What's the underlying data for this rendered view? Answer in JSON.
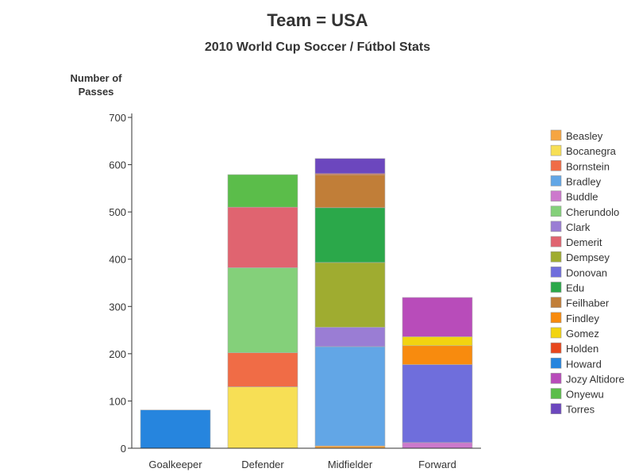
{
  "chart_data": {
    "type": "bar",
    "stacked": true,
    "title": "Team = USA",
    "subtitle": "2010 World Cup Soccer / Fútbol Stats",
    "ylabel_lines": [
      "Number of",
      "Passes"
    ],
    "ylim": [
      0,
      700
    ],
    "yticks": [
      0,
      100,
      200,
      300,
      400,
      500,
      600,
      700
    ],
    "categories": [
      "Goalkeeper",
      "Defender",
      "Midfielder",
      "Forward"
    ],
    "legend_position": "right",
    "series": [
      {
        "name": "Beasley",
        "color": "#f6a541",
        "values": [
          0,
          0,
          5,
          0
        ]
      },
      {
        "name": "Bocanegra",
        "color": "#f7df55",
        "values": [
          0,
          130,
          0,
          0
        ]
      },
      {
        "name": "Bornstein",
        "color": "#f06c46",
        "values": [
          0,
          72,
          0,
          0
        ]
      },
      {
        "name": "Bradley",
        "color": "#62a6e6",
        "values": [
          0,
          0,
          210,
          0
        ]
      },
      {
        "name": "Buddle",
        "color": "#cc79cc",
        "values": [
          0,
          0,
          0,
          12
        ]
      },
      {
        "name": "Cherundolo",
        "color": "#84d07a",
        "values": [
          0,
          180,
          0,
          0
        ]
      },
      {
        "name": "Clark",
        "color": "#9a7dd4",
        "values": [
          0,
          0,
          41,
          0
        ]
      },
      {
        "name": "Demerit",
        "color": "#e06470",
        "values": [
          0,
          128,
          0,
          0
        ]
      },
      {
        "name": "Dempsey",
        "color": "#9fac30",
        "values": [
          0,
          0,
          137,
          0
        ]
      },
      {
        "name": "Donovan",
        "color": "#6f6edc",
        "values": [
          0,
          0,
          0,
          165
        ]
      },
      {
        "name": "Edu",
        "color": "#2ba84a",
        "values": [
          0,
          0,
          116,
          0
        ]
      },
      {
        "name": "Feilhaber",
        "color": "#c17e38",
        "values": [
          0,
          0,
          70,
          0
        ]
      },
      {
        "name": "Findley",
        "color": "#f88b0e",
        "values": [
          0,
          0,
          0,
          40
        ]
      },
      {
        "name": "Gomez",
        "color": "#f2d410",
        "values": [
          0,
          0,
          0,
          19
        ]
      },
      {
        "name": "Holden",
        "color": "#e8461c",
        "values": [
          0,
          0,
          2,
          0
        ]
      },
      {
        "name": "Howard",
        "color": "#2685de",
        "values": [
          81,
          0,
          0,
          0
        ]
      },
      {
        "name": "Jozy Altidore",
        "color": "#b84cba",
        "values": [
          0,
          0,
          0,
          83
        ]
      },
      {
        "name": "Onyewu",
        "color": "#5bbd4a",
        "values": [
          0,
          69,
          0,
          0
        ]
      },
      {
        "name": "Torres",
        "color": "#6c47be",
        "values": [
          0,
          0,
          32,
          0
        ]
      }
    ]
  }
}
